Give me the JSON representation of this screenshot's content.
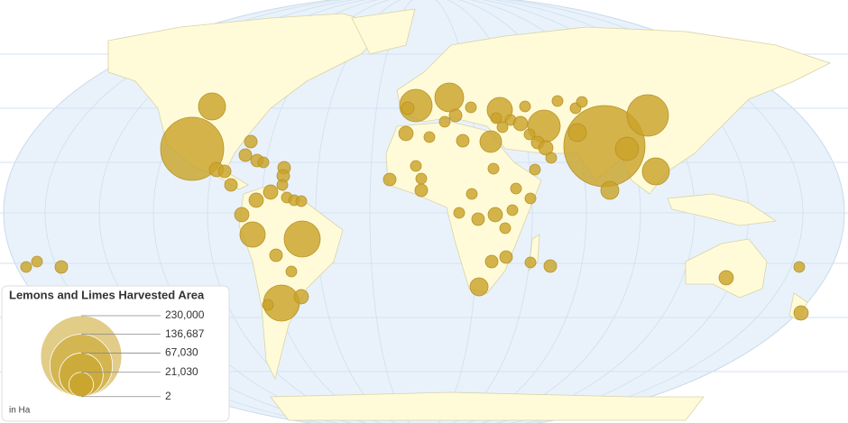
{
  "chart_data": {
    "type": "bubble-map",
    "title": "Lemons and Limes Harvested Area",
    "unit_note": "in Ha",
    "color": "#c9a227",
    "size_max": 230000,
    "size_ticks": [
      {
        "value": 230000,
        "label": "230,000"
      },
      {
        "value": 136687,
        "label": "136,687"
      },
      {
        "value": 67030,
        "label": "67,030"
      },
      {
        "value": 21030,
        "label": "21,030"
      },
      2
    ],
    "values": [
      25600,
      139000,
      230000,
      60000,
      45400,
      45400,
      36800,
      36800,
      29000,
      22300,
      25600,
      22300,
      16400,
      11400,
      19000,
      11400,
      11400,
      5600,
      5600,
      5600,
      4100,
      7200,
      5600,
      5600,
      5600,
      5600,
      4100,
      7200,
      7200,
      4100,
      4100,
      4100,
      7200,
      5600,
      4100,
      7200,
      4100,
      4100,
      4100,
      5600,
      7200,
      4100,
      5600,
      4100,
      5600,
      5600,
      4100,
      4100,
      4100,
      4100,
      7200,
      4100,
      4100,
      5600,
      7200,
      4100,
      4100,
      4100,
      4100,
      4100,
      4100,
      4100,
      5600,
      5600,
      4100,
      4100,
      4100,
      4100,
      4100,
      7200,
      4100,
      5600,
      4100,
      5600,
      5600,
      4100,
      5600,
      7200,
      4100,
      7200
    ]
  }
}
